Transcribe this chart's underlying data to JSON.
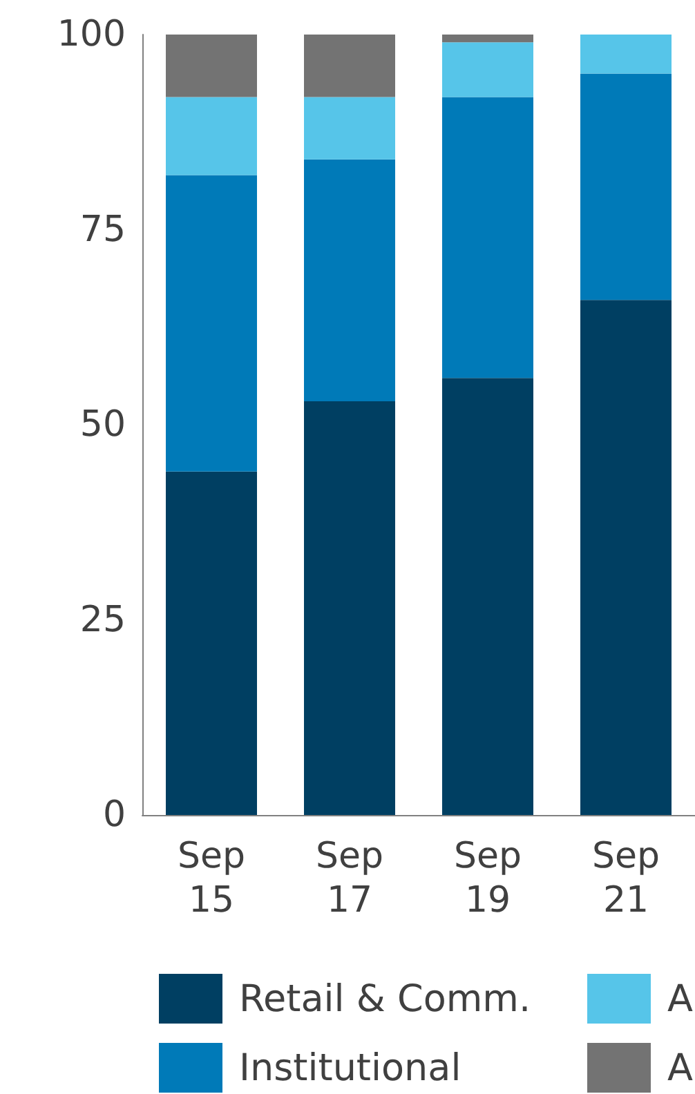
{
  "chart_data": {
    "type": "bar",
    "stacked": true,
    "categories": [
      "Sep 15",
      "Sep 17",
      "Sep 19",
      "Sep 21"
    ],
    "series": [
      {
        "name": "Retail & Comm.",
        "color": "#003f62",
        "values": [
          44,
          53,
          56,
          66
        ]
      },
      {
        "name": "Institutional",
        "color": "#007ab8",
        "values": [
          38,
          31,
          36,
          29
        ]
      },
      {
        "name": "A",
        "color": "#56c5e9",
        "values": [
          10,
          8,
          7,
          5
        ]
      },
      {
        "name": "A",
        "color": "#737373",
        "values": [
          8,
          8,
          1,
          0
        ]
      }
    ],
    "ylim": [
      0,
      100
    ],
    "yticks": [
      0,
      25,
      50,
      75,
      100
    ],
    "grid": false,
    "legend": "bottom"
  }
}
